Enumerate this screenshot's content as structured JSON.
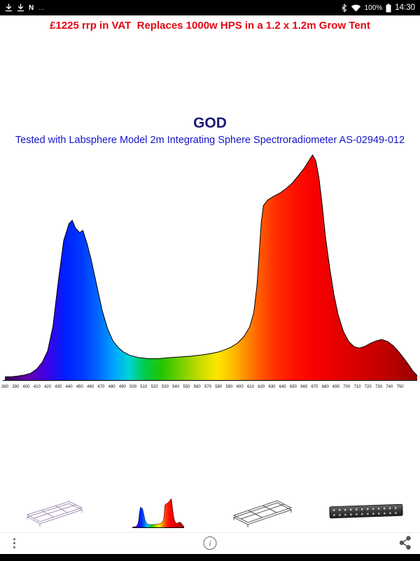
{
  "status_bar": {
    "time": "14:30",
    "battery_percent": "100%",
    "nfc_label": "N",
    "more_glyph": "…",
    "icons": [
      "download-icon",
      "download-icon",
      "nfc-icon",
      "bluetooth-icon",
      "wifi-icon",
      "battery-icon"
    ]
  },
  "header": {
    "promo": "£1225 rrp in VAT  Replaces 1000w HPS in a 1.2 x 1.2m Grow Tent"
  },
  "colors": {
    "promo_red": "#e30613",
    "title_navy": "#1a1a78",
    "subtitle_blue": "#1414c8",
    "statusbar_bg": "#000000"
  },
  "chart_data": {
    "type": "area",
    "title": "GOD",
    "subtitle": "Tested with Labsphere Model 2m Integrating Sphere Spectroradiometer AS-02949-012",
    "xlabel": "",
    "ylabel": "",
    "x_range": [
      378,
      766
    ],
    "y_range": [
      0,
      1
    ],
    "grid": false,
    "legend": false,
    "x_ticks": [
      380,
      390,
      400,
      410,
      420,
      430,
      440,
      450,
      460,
      470,
      480,
      490,
      500,
      510,
      520,
      530,
      540,
      550,
      560,
      570,
      580,
      590,
      600,
      610,
      620,
      630,
      640,
      650,
      660,
      670,
      680,
      690,
      700,
      710,
      720,
      730,
      740,
      750
    ],
    "points": [
      [
        380,
        0.015
      ],
      [
        386,
        0.015
      ],
      [
        392,
        0.018
      ],
      [
        398,
        0.022
      ],
      [
        404,
        0.03
      ],
      [
        410,
        0.05
      ],
      [
        415,
        0.08
      ],
      [
        420,
        0.13
      ],
      [
        425,
        0.24
      ],
      [
        430,
        0.44
      ],
      [
        435,
        0.62
      ],
      [
        440,
        0.695
      ],
      [
        443,
        0.71
      ],
      [
        446,
        0.675
      ],
      [
        450,
        0.655
      ],
      [
        453,
        0.665
      ],
      [
        457,
        0.605
      ],
      [
        461,
        0.53
      ],
      [
        466,
        0.42
      ],
      [
        471,
        0.31
      ],
      [
        476,
        0.23
      ],
      [
        481,
        0.175
      ],
      [
        486,
        0.145
      ],
      [
        491,
        0.125
      ],
      [
        497,
        0.11
      ],
      [
        505,
        0.1
      ],
      [
        515,
        0.095
      ],
      [
        525,
        0.096
      ],
      [
        535,
        0.1
      ],
      [
        545,
        0.103
      ],
      [
        555,
        0.107
      ],
      [
        565,
        0.112
      ],
      [
        572,
        0.117
      ],
      [
        580,
        0.125
      ],
      [
        586,
        0.135
      ],
      [
        592,
        0.147
      ],
      [
        598,
        0.165
      ],
      [
        604,
        0.195
      ],
      [
        609,
        0.235
      ],
      [
        613,
        0.3
      ],
      [
        616,
        0.42
      ],
      [
        618,
        0.56
      ],
      [
        620,
        0.7
      ],
      [
        622,
        0.775
      ],
      [
        626,
        0.8
      ],
      [
        631,
        0.815
      ],
      [
        637,
        0.83
      ],
      [
        643,
        0.85
      ],
      [
        649,
        0.875
      ],
      [
        655,
        0.91
      ],
      [
        660,
        0.94
      ],
      [
        664,
        0.97
      ],
      [
        668,
        1.0
      ],
      [
        671,
        0.975
      ],
      [
        674,
        0.9
      ],
      [
        677,
        0.78
      ],
      [
        680,
        0.64
      ],
      [
        684,
        0.5
      ],
      [
        688,
        0.38
      ],
      [
        692,
        0.29
      ],
      [
        697,
        0.215
      ],
      [
        702,
        0.17
      ],
      [
        707,
        0.148
      ],
      [
        712,
        0.142
      ],
      [
        717,
        0.15
      ],
      [
        722,
        0.163
      ],
      [
        728,
        0.175
      ],
      [
        733,
        0.18
      ],
      [
        738,
        0.172
      ],
      [
        743,
        0.155
      ],
      [
        748,
        0.13
      ],
      [
        753,
        0.1
      ],
      [
        758,
        0.068
      ],
      [
        762,
        0.04
      ],
      [
        766,
        0.02
      ]
    ],
    "gradient_stops": [
      [
        380,
        "#38005a"
      ],
      [
        400,
        "#6100b4"
      ],
      [
        418,
        "#3c00e6"
      ],
      [
        435,
        "#0020ff"
      ],
      [
        450,
        "#0038ff"
      ],
      [
        465,
        "#0064ff"
      ],
      [
        480,
        "#00a2ff"
      ],
      [
        495,
        "#00d4d4"
      ],
      [
        508,
        "#00cc55"
      ],
      [
        525,
        "#22c400"
      ],
      [
        545,
        "#7ed000"
      ],
      [
        562,
        "#c8dc00"
      ],
      [
        578,
        "#ffe600"
      ],
      [
        592,
        "#ffbe00"
      ],
      [
        605,
        "#ff8c00"
      ],
      [
        618,
        "#ff5a00"
      ],
      [
        632,
        "#ff3000"
      ],
      [
        650,
        "#ff1200"
      ],
      [
        668,
        "#f80000"
      ],
      [
        690,
        "#e60000"
      ],
      [
        715,
        "#d40000"
      ],
      [
        735,
        "#c00000"
      ],
      [
        766,
        "#990000"
      ]
    ]
  },
  "thumbnails": [
    {
      "name": "fixture-wireframe-light"
    },
    {
      "name": "mini-spectrum-chart"
    },
    {
      "name": "fixture-wireframe-dark"
    },
    {
      "name": "led-bar-photo"
    }
  ],
  "toolbar": {
    "overflow_glyph": "⋮",
    "info_glyph": "i"
  }
}
